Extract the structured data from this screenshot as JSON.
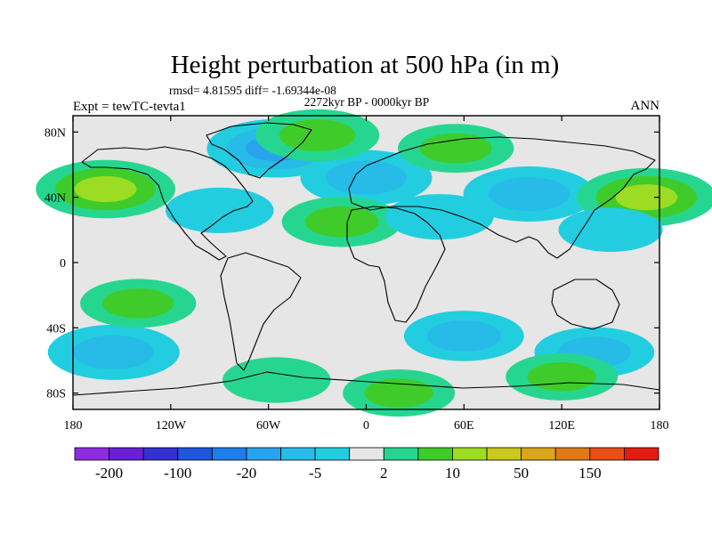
{
  "chart_data": {
    "type": "heatmap",
    "title": "Height perturbation at 500 hPa (in m)",
    "stats_line": "rmsd= 4.81595 diff= -1.69344e-08",
    "period": "2272kyr BP - 0000kyr BP",
    "experiment": "Expt = tewTC-tevta1",
    "season": "ANN",
    "x_axis": {
      "range": [
        -180,
        180
      ],
      "ticks": [
        -180,
        -120,
        -60,
        0,
        60,
        120,
        180
      ],
      "tick_labels": [
        "180",
        "120W",
        "60W",
        "0",
        "60E",
        "120E",
        "180"
      ]
    },
    "y_axis": {
      "range": [
        -90,
        90
      ],
      "ticks": [
        80,
        40,
        0,
        -40,
        -80
      ],
      "tick_labels": [
        "80N",
        "40N",
        "0",
        "40S",
        "80S"
      ]
    },
    "colorbar": {
      "levels": [
        -200,
        -150,
        -100,
        -50,
        -20,
        -10,
        -5,
        -2,
        2,
        5,
        10,
        20,
        50,
        100,
        150,
        200
      ],
      "tick_labels": [
        "-200",
        "-100",
        "-20",
        "-5",
        "2",
        "10",
        "50",
        "150"
      ],
      "colors": [
        "#8d2ce0",
        "#6a1fd6",
        "#3530d2",
        "#1e56de",
        "#1f7ee9",
        "#2aa3ee",
        "#27bbe8",
        "#23cde0",
        "#e6e6e6",
        "#26d690",
        "#3fcc2b",
        "#9cdc23",
        "#c9c91e",
        "#d9a51c",
        "#e07a18",
        "#e84e16",
        "#e31c12"
      ]
    },
    "anomalies": [
      {
        "lon": -55,
        "lat": 70,
        "value": -12
      },
      {
        "lon": 0,
        "lat": 52,
        "value": -10
      },
      {
        "lon": -30,
        "lat": 78,
        "value": 8
      },
      {
        "lon": 100,
        "lat": 42,
        "value": -10
      },
      {
        "lon": 55,
        "lat": 70,
        "value": 6
      },
      {
        "lon": -160,
        "lat": 45,
        "value": 12
      },
      {
        "lon": 172,
        "lat": 40,
        "value": 12
      },
      {
        "lon": -15,
        "lat": 25,
        "value": 7
      },
      {
        "lon": -90,
        "lat": 32,
        "value": -4
      },
      {
        "lon": 45,
        "lat": 28,
        "value": -4
      },
      {
        "lon": 150,
        "lat": 20,
        "value": -3
      },
      {
        "lon": -155,
        "lat": -55,
        "value": -10
      },
      {
        "lon": 60,
        "lat": -45,
        "value": -7
      },
      {
        "lon": 140,
        "lat": -55,
        "value": -7
      },
      {
        "lon": -140,
        "lat": -25,
        "value": 6
      },
      {
        "lon": 120,
        "lat": -70,
        "value": 5
      },
      {
        "lon": -55,
        "lat": -72,
        "value": 4
      },
      {
        "lon": 20,
        "lat": -80,
        "value": 5
      }
    ]
  }
}
